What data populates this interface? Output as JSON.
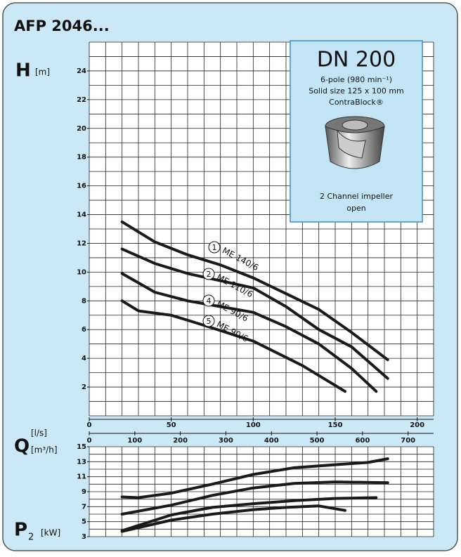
{
  "header": {
    "title": "AFP 2046..."
  },
  "info_box": {
    "title": "DN 200",
    "line1": "6-pole (980 min⁻¹)",
    "line2": "Solid size 125 x 100 mm",
    "line3": "ContraBlock®",
    "line4": "2 Channel impeller",
    "line5": "open"
  },
  "chart_data": [
    {
      "type": "line",
      "y_label": "H",
      "y_unit": "[m]",
      "x_label": "Q",
      "x_unit": "[l/s]",
      "x2_unit": "[m³/h]",
      "xlim": [
        0,
        210
      ],
      "xticks": [
        0,
        50,
        100,
        150,
        200
      ],
      "x2lim": [
        0,
        756
      ],
      "x2ticks": [
        0,
        100,
        200,
        300,
        400,
        500,
        600,
        700
      ],
      "ylim": [
        0,
        26
      ],
      "yticks": [
        2,
        4,
        6,
        8,
        10,
        12,
        14,
        16,
        18,
        20,
        22,
        24
      ],
      "grid": true,
      "grid_step_x": 10,
      "grid_step_y": 1,
      "series": [
        {
          "id": "1",
          "name": "ME 140/6",
          "color": "#1a1a1a",
          "x": [
            20,
            40,
            60,
            80,
            100,
            120,
            140,
            160,
            182
          ],
          "values": [
            13.5,
            12.1,
            11.2,
            10.5,
            9.6,
            8.5,
            7.4,
            5.8,
            3.9
          ]
        },
        {
          "id": "2",
          "name": "ME 110/6",
          "color": "#1a1a1a",
          "x": [
            20,
            40,
            60,
            80,
            100,
            120,
            140,
            160,
            182
          ],
          "values": [
            11.6,
            10.6,
            9.9,
            9.4,
            8.9,
            7.6,
            6.0,
            4.8,
            2.6
          ]
        },
        {
          "id": "4",
          "name": "ME 90/6",
          "color": "#1a1a1a",
          "x": [
            20,
            40,
            60,
            80,
            100,
            120,
            140,
            160,
            175
          ],
          "values": [
            9.9,
            8.6,
            8.0,
            7.6,
            7.2,
            6.2,
            5.0,
            3.3,
            1.7
          ]
        },
        {
          "id": "5",
          "name": "ME 90/6",
          "color": "#1a1a1a",
          "x": [
            20,
            30,
            50,
            70,
            100,
            130,
            156
          ],
          "values": [
            8.0,
            7.3,
            7.0,
            6.3,
            5.2,
            3.5,
            1.7
          ]
        }
      ]
    },
    {
      "type": "line",
      "y_label": "P",
      "y_label_sub": "2",
      "y_unit": "[kW]",
      "xlim": [
        0,
        210
      ],
      "ylim": [
        3,
        15
      ],
      "yticks": [
        3,
        5,
        7,
        9,
        11,
        13,
        15
      ],
      "grid": true,
      "grid_step_x": 10,
      "grid_step_y": 1,
      "series": [
        {
          "name": "ME 140/6",
          "color": "#1a1a1a",
          "x": [
            20,
            30,
            50,
            75,
            100,
            125,
            150,
            170,
            182
          ],
          "values": [
            8.3,
            8.2,
            8.8,
            10.0,
            11.3,
            12.2,
            12.6,
            12.9,
            13.4
          ]
        },
        {
          "name": "ME 110/6",
          "color": "#1a1a1a",
          "x": [
            20,
            50,
            75,
            100,
            125,
            150,
            182
          ],
          "values": [
            6.0,
            7.2,
            8.5,
            9.5,
            10.1,
            10.3,
            10.2
          ]
        },
        {
          "name": "ME 90/6",
          "color": "#1a1a1a",
          "x": [
            20,
            50,
            75,
            100,
            125,
            150,
            175
          ],
          "values": [
            3.8,
            5.9,
            6.9,
            7.4,
            7.8,
            8.1,
            8.2
          ]
        },
        {
          "name": "ME 90/6",
          "color": "#1a1a1a",
          "x": [
            20,
            50,
            75,
            100,
            120,
            140,
            156
          ],
          "values": [
            3.7,
            5.2,
            6.0,
            6.6,
            6.9,
            7.1,
            6.5
          ]
        }
      ]
    }
  ]
}
